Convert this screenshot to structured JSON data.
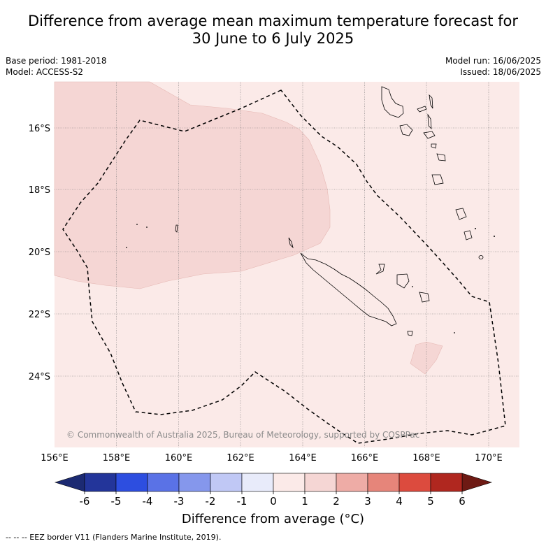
{
  "header": {
    "title_line1": "Difference from average mean maximum temperature forecast for",
    "title_line2": "30 June to 6 July 2025",
    "base_period": "Base period: 1981-2018",
    "model": "Model: ACCESS-S2",
    "model_run": "Model run: 16/06/2025",
    "issued": "Issued: 18/06/2025"
  },
  "map": {
    "lat_labels": [
      "16°S",
      "18°S",
      "20°S",
      "22°S",
      "24°S"
    ],
    "lon_labels": [
      "156°E",
      "158°E",
      "160°E",
      "162°E",
      "164°E",
      "166°E",
      "168°E",
      "170°E"
    ],
    "copyright": "© Commonwealth of Australia 2025, Bureau of Meteorology, supported by COSPPac",
    "background_color": "#fbeae8",
    "anomaly_region_color": "#f5d6d4"
  },
  "colorbar": {
    "ticks": [
      "-6",
      "-5",
      "-4",
      "-3",
      "-2",
      "-1",
      "0",
      "1",
      "2",
      "3",
      "4",
      "5",
      "6"
    ],
    "colors": [
      "#23359a",
      "#2d4ee0",
      "#5a72e6",
      "#8597ec",
      "#c0c8f5",
      "#e8ebfa",
      "#fbeae8",
      "#f5d6d4",
      "#eeaca6",
      "#e6857a",
      "#dc4b3e",
      "#b0271f"
    ],
    "low_extend_color": "#1c2a72",
    "high_extend_color": "#6e1a14",
    "label": "Difference from average (°C)"
  },
  "legend": {
    "eez": "--  --  -- EEZ border V11 (Flanders Marine Institute, 2019)."
  }
}
